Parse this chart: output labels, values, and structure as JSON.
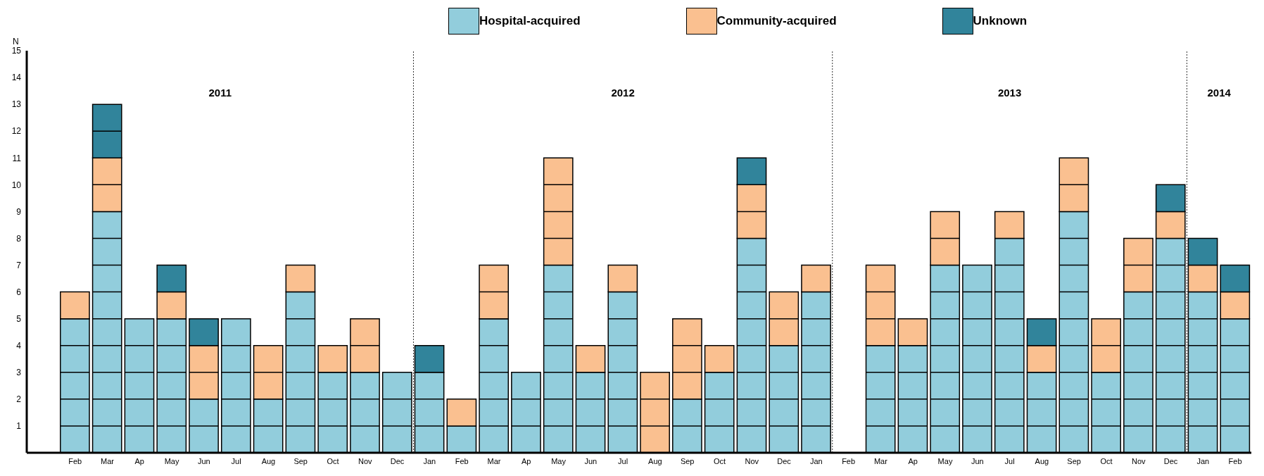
{
  "chart_data": {
    "type": "bar",
    "stacked": true,
    "ylabel": "N",
    "legend": "top",
    "x": [
      "2011-02",
      "2011-03",
      "2011-04",
      "2011-05",
      "2011-06",
      "2011-07",
      "2011-08",
      "2011-09",
      "2011-10",
      "2011-11",
      "2011-12",
      "2012-01",
      "2012-02",
      "2012-03",
      "2012-04",
      "2012-05",
      "2012-06",
      "2012-07",
      "2012-08",
      "2012-09",
      "2012-10",
      "2012-11",
      "2012-12",
      "2013-01",
      "2013-02",
      "2013-03",
      "2013-04",
      "2013-05",
      "2013-06",
      "2013-07",
      "2013-08",
      "2013-09",
      "2013-10",
      "2013-11",
      "2013-12",
      "2014-01",
      "2014-02"
    ],
    "xlim": [
      "2010-12-16",
      "2014-02-16"
    ],
    "xticks": [
      {
        "value": "2011-02",
        "label": "Feb"
      },
      {
        "value": "2011-03",
        "label": "Mar"
      },
      {
        "value": "2011-04",
        "label": "Ap"
      },
      {
        "value": "2011-05",
        "label": "May"
      },
      {
        "value": "2011-06",
        "label": "Jun"
      },
      {
        "value": "2011-07",
        "label": "Jul"
      },
      {
        "value": "2011-08",
        "label": "Aug"
      },
      {
        "value": "2011-09",
        "label": "Sep"
      },
      {
        "value": "2011-10",
        "label": "Oct"
      },
      {
        "value": "2011-11",
        "label": "Nov"
      },
      {
        "value": "2011-12",
        "label": "Dec"
      },
      {
        "value": "2012-01",
        "label": "Jan"
      },
      {
        "value": "2012-02",
        "label": "Feb"
      },
      {
        "value": "2012-03",
        "label": "Mar"
      },
      {
        "value": "2012-04",
        "label": "Ap"
      },
      {
        "value": "2012-05",
        "label": "May"
      },
      {
        "value": "2012-06",
        "label": "Jun"
      },
      {
        "value": "2012-07",
        "label": "Jul"
      },
      {
        "value": "2012-08",
        "label": "Aug"
      },
      {
        "value": "2012-09",
        "label": "Sep"
      },
      {
        "value": "2012-10",
        "label": "Oct"
      },
      {
        "value": "2012-11",
        "label": "Nov"
      },
      {
        "value": "2012-12",
        "label": "Dec"
      },
      {
        "value": "2013-01",
        "label": "Jan"
      },
      {
        "value": "2013-02",
        "label": "Feb"
      },
      {
        "value": "2013-03",
        "label": "Mar"
      },
      {
        "value": "2013-04",
        "label": "Ap"
      },
      {
        "value": "2013-05",
        "label": "May"
      },
      {
        "value": "2013-06",
        "label": "Jun"
      },
      {
        "value": "2013-07",
        "label": "Jul"
      },
      {
        "value": "2013-08",
        "label": "Aug"
      },
      {
        "value": "2013-09",
        "label": "Sep"
      },
      {
        "value": "2013-10",
        "label": "Oct"
      },
      {
        "value": "2013-11",
        "label": "Nov"
      },
      {
        "value": "2013-12",
        "label": "Dec"
      },
      {
        "value": "2014-01",
        "label": "Jan"
      },
      {
        "value": "2014-02",
        "label": "Feb"
      }
    ],
    "ylim": [
      0,
      15
    ],
    "yticks": [
      1,
      2,
      3,
      4,
      5,
      6,
      7,
      8,
      9,
      10,
      11,
      12,
      13,
      14,
      15
    ],
    "series": [
      {
        "name": "Hospital-acquired",
        "color": "#92cddc",
        "values": [
          5,
          9,
          5,
          5,
          2,
          5,
          2,
          6,
          3,
          3,
          3,
          3,
          1,
          5,
          3,
          7,
          3,
          6,
          0,
          2,
          3,
          8,
          4,
          6,
          0,
          4,
          4,
          7,
          7,
          8,
          3,
          9,
          3,
          6,
          8,
          6,
          5
        ]
      },
      {
        "name": "Community-acquired",
        "color": "#fac090",
        "values": [
          1,
          2,
          0,
          1,
          2,
          0,
          2,
          1,
          1,
          2,
          0,
          0,
          1,
          2,
          0,
          4,
          1,
          1,
          3,
          3,
          1,
          2,
          2,
          1,
          0,
          3,
          1,
          2,
          0,
          1,
          1,
          2,
          2,
          2,
          1,
          1,
          1
        ]
      },
      {
        "name": "Unknown",
        "color": "#31849b",
        "values": [
          0,
          2,
          0,
          1,
          1,
          0,
          0,
          0,
          0,
          0,
          0,
          1,
          0,
          0,
          0,
          0,
          0,
          0,
          0,
          0,
          0,
          1,
          0,
          0,
          0,
          0,
          0,
          0,
          0,
          0,
          1,
          0,
          0,
          0,
          1,
          1,
          1
        ]
      }
    ],
    "ref_lines": [
      {
        "axis": "x",
        "value": "2011-12-16",
        "line_style": "dotted"
      },
      {
        "axis": "x",
        "value": "2013-01-16",
        "line_style": "dotted"
      },
      {
        "axis": "x",
        "value": "2013-12-16",
        "line_style": "dotted"
      }
    ],
    "annotations": [
      "2011",
      "2012",
      "2013",
      "2014"
    ]
  }
}
